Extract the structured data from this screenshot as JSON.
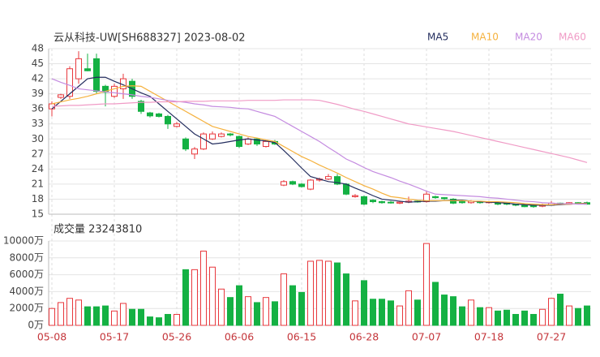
{
  "chart_data": [
    {
      "type": "candlestick",
      "title": "云从科技-UW[SH688327] 2023-08-02",
      "up_color": "#e8383d",
      "down_color": "#14b143",
      "open": [
        36,
        38.3,
        38.5,
        42,
        44,
        46,
        40.5,
        38.5,
        40,
        41.5,
        37.5,
        35.2,
        35,
        34.5,
        32.5,
        30,
        27,
        28,
        30,
        30.5,
        31,
        30.5,
        29,
        30,
        28.5,
        29.5,
        20.8,
        21.5,
        21,
        20,
        21.8,
        22,
        22.5,
        21,
        18.5,
        18.5,
        17.8,
        17.5,
        17.4,
        17.2,
        17.4,
        17.6,
        17.5,
        18.5,
        18.3,
        18,
        17.5,
        17.3,
        17.5,
        17.3,
        17.3,
        17.2,
        17,
        16.8,
        16.7,
        16.6,
        16.8,
        17.2,
        17,
        17.3,
        17.3
      ],
      "close": [
        37,
        38.8,
        44,
        46,
        43.6,
        39.5,
        39.3,
        40.5,
        42,
        38.5,
        35.5,
        34.6,
        34.5,
        33,
        33,
        28,
        28,
        31,
        31,
        31,
        30.8,
        28.5,
        30,
        29,
        29.5,
        29,
        21.5,
        21,
        20.5,
        21.8,
        22,
        22.5,
        21,
        19,
        18.7,
        17,
        17.5,
        17.3,
        17.3,
        17.4,
        17.6,
        17.5,
        19,
        18.3,
        18.1,
        17.2,
        17.3,
        17.6,
        17.3,
        17.5,
        17,
        17,
        16.8,
        16.5,
        16.5,
        16.9,
        17.2,
        17,
        17.3,
        17.1,
        17
      ],
      "high": [
        37.5,
        39,
        44.5,
        47.5,
        47,
        47,
        40.8,
        41,
        43,
        42,
        37.8,
        35.4,
        35.2,
        34.8,
        33.4,
        30.3,
        28.4,
        31.3,
        31.5,
        31.3,
        31.2,
        30.7,
        30.3,
        30.2,
        29.8,
        29.8,
        21.8,
        21.7,
        21.2,
        22,
        22.3,
        23,
        23,
        21.2,
        19,
        18.7,
        18,
        17.7,
        17.6,
        17.6,
        18.5,
        17.8,
        19.5,
        18.7,
        18.4,
        18.2,
        17.7,
        17.8,
        17.6,
        17.6,
        17.5,
        17.3,
        17.1,
        17,
        16.9,
        17.1,
        17.6,
        17.3,
        17.4,
        17.4,
        17.5
      ],
      "low": [
        34.5,
        38,
        38,
        41,
        43.5,
        39,
        36.5,
        38.2,
        38,
        38,
        35,
        34.3,
        34.3,
        32,
        32.3,
        27.6,
        26,
        27.8,
        29.8,
        30.3,
        30.5,
        28.2,
        28.8,
        28.6,
        28.3,
        28.8,
        20.6,
        20.8,
        20.3,
        19.8,
        21.5,
        21.8,
        20.8,
        18.8,
        18.3,
        16.8,
        17.2,
        17.1,
        17.1,
        17,
        17.2,
        17.3,
        17.3,
        18.1,
        17.9,
        17,
        17.1,
        17.1,
        17.1,
        17.1,
        16.8,
        16.8,
        16.6,
        16.4,
        16.3,
        16.4,
        16.7,
        16.9,
        16.9,
        17,
        16.9
      ],
      "ylim": [
        15,
        48
      ],
      "yticks": [
        15,
        18,
        21,
        24,
        27,
        30,
        33,
        36,
        39,
        42,
        45,
        48
      ],
      "series": [
        {
          "name": "MA5",
          "color": "#232d5e",
          "values": [
            36,
            37.5,
            39,
            40.5,
            42,
            42.3,
            42.3,
            41.5,
            40.8,
            40,
            39.2,
            38.5,
            37,
            35.5,
            34,
            32.5,
            31,
            30,
            29,
            29.2,
            29.5,
            29.8,
            30,
            29.8,
            29.6,
            29.3,
            27.7,
            26,
            24.2,
            22.5,
            22,
            21.5,
            21.3,
            21,
            20.2,
            19.5,
            18.7,
            18,
            17.8,
            17.6,
            17.4,
            17.5,
            17.6,
            17.6,
            17.7,
            17.8,
            17.8,
            17.6,
            17.5,
            17.4,
            17.3,
            17.2,
            17.0,
            16.9,
            16.8,
            16.8,
            16.8,
            16.9,
            17.0,
            17.1,
            17.2
          ]
        },
        {
          "name": "MA10",
          "color": "#f5b13d",
          "values": [
            37,
            37.4,
            37.8,
            38.1,
            38.5,
            39,
            39.5,
            40,
            40.5,
            40.6,
            40.5,
            39.5,
            38.5,
            37.5,
            36.5,
            35.5,
            34.5,
            33.5,
            32.5,
            32,
            31.5,
            31,
            30.5,
            30.2,
            29.8,
            29.5,
            28.5,
            27.5,
            26.5,
            25.7,
            24.8,
            24.0,
            23.2,
            22.3,
            21.5,
            20.7,
            20,
            19.2,
            18.5,
            18.3,
            18,
            17.8,
            17.7,
            17.7,
            17.7,
            17.7,
            17.7,
            17.6,
            17.6,
            17.5,
            17.5,
            17.4,
            17.3,
            17.1,
            17.0,
            16.9,
            16.9,
            17.0,
            17.0,
            17.1,
            17.1
          ]
        },
        {
          "name": "MA20",
          "color": "#c48be0",
          "values": [
            42,
            41.3,
            40.7,
            40,
            39.8,
            39.6,
            39.4,
            39.2,
            39.0,
            38.8,
            38.5,
            38.3,
            38.0,
            37.7,
            37.5,
            37.3,
            37.0,
            36.8,
            36.5,
            36.4,
            36.3,
            36.1,
            36.0,
            35.5,
            35.0,
            34.5,
            33.5,
            32.5,
            31.5,
            30.5,
            29.5,
            28.3,
            27.2,
            26.0,
            25.2,
            24.3,
            23.5,
            22.9,
            22.3,
            21.6,
            21.0,
            20.3,
            19.6,
            19.0,
            18.9,
            18.8,
            18.7,
            18.6,
            18.5,
            18.3,
            18.2,
            18.0,
            17.8,
            17.6,
            17.5,
            17.3,
            17.2,
            17.1,
            17.1,
            17.0,
            17.0
          ]
        },
        {
          "name": "MA60",
          "color": "#f09bc6",
          "values": [
            36.5,
            36.6,
            36.7,
            36.7,
            36.8,
            36.9,
            37.0,
            37.0,
            37.1,
            37.2,
            37.3,
            37.3,
            37.4,
            37.4,
            37.4,
            37.5,
            37.5,
            37.5,
            37.6,
            37.6,
            37.6,
            37.6,
            37.7,
            37.7,
            37.7,
            37.7,
            37.8,
            37.8,
            37.8,
            37.8,
            37.7,
            37.3,
            36.9,
            36.4,
            35.9,
            35.5,
            35.0,
            34.5,
            34.0,
            33.5,
            33.0,
            32.7,
            32.4,
            32.1,
            31.8,
            31.5,
            31.1,
            30.7,
            30.3,
            29.9,
            29.5,
            29.1,
            28.7,
            28.3,
            27.9,
            27.5,
            27.1,
            26.7,
            26.3,
            25.8,
            25.3
          ]
        }
      ]
    },
    {
      "type": "volume",
      "title": "成交量 23243810",
      "categories": [
        "05-08",
        null,
        null,
        null,
        null,
        null,
        null,
        "05-17",
        null,
        null,
        null,
        null,
        null,
        null,
        "05-26",
        null,
        null,
        null,
        null,
        null,
        null,
        "06-06",
        null,
        null,
        null,
        null,
        null,
        null,
        "06-15",
        null,
        null,
        null,
        null,
        null,
        null,
        "06-28",
        null,
        null,
        null,
        null,
        null,
        null,
        "07-07",
        null,
        null,
        null,
        null,
        null,
        null,
        "07-18",
        null,
        null,
        null,
        null,
        null,
        null,
        "07-27",
        null,
        null,
        null,
        null
      ],
      "values": [
        2000,
        2700,
        3200,
        3000,
        2200,
        2200,
        2300,
        1700,
        2600,
        1900,
        1900,
        1000,
        900,
        1300,
        1300,
        6600,
        6600,
        8800,
        6900,
        4300,
        3300,
        4700,
        3400,
        2700,
        3300,
        2800,
        6100,
        4700,
        3900,
        7600,
        7700,
        7600,
        7400,
        6100,
        2900,
        5300,
        3100,
        3100,
        2900,
        2300,
        4100,
        3000,
        9700,
        5100,
        3600,
        3400,
        2200,
        3000,
        2100,
        2100,
        1700,
        1800,
        1300,
        1700,
        1300,
        1900,
        3200,
        3700,
        2300,
        2000,
        2300
      ],
      "ylim": [
        0,
        10000
      ],
      "yticks": [
        {
          "value": 0,
          "label": "0万"
        },
        {
          "value": 2000,
          "label": "2000万"
        },
        {
          "value": 4000,
          "label": "4000万"
        },
        {
          "value": 6000,
          "label": "6000万"
        },
        {
          "value": 8000,
          "label": "8000万"
        },
        {
          "value": 10000,
          "label": "10000万"
        }
      ]
    }
  ]
}
